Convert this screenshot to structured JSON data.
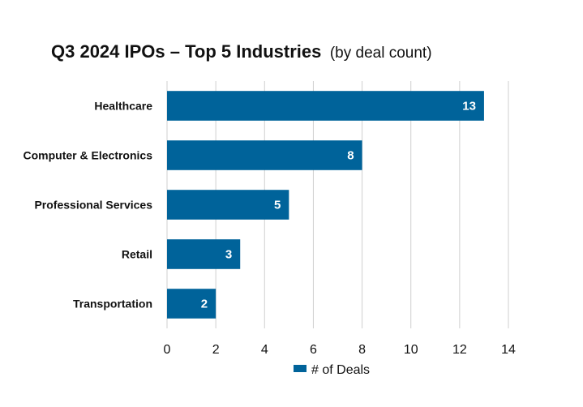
{
  "chart_data": {
    "type": "bar",
    "orientation": "horizontal",
    "title": "Q3 2024 IPOs – Top 5 Industries",
    "subtitle": "(by deal count)",
    "categories": [
      "Healthcare",
      "Computer & Electronics",
      "Professional Services",
      "Retail",
      "Transportation"
    ],
    "series": [
      {
        "name": "# of Deals",
        "values": [
          13,
          8,
          5,
          3,
          2
        ],
        "color": "#00639a"
      }
    ],
    "xlim": [
      0,
      14
    ],
    "x_ticks": [
      0,
      2,
      4,
      6,
      8,
      10,
      12,
      14
    ],
    "grid": true,
    "legend_position": "bottom",
    "data_labels": true
  }
}
